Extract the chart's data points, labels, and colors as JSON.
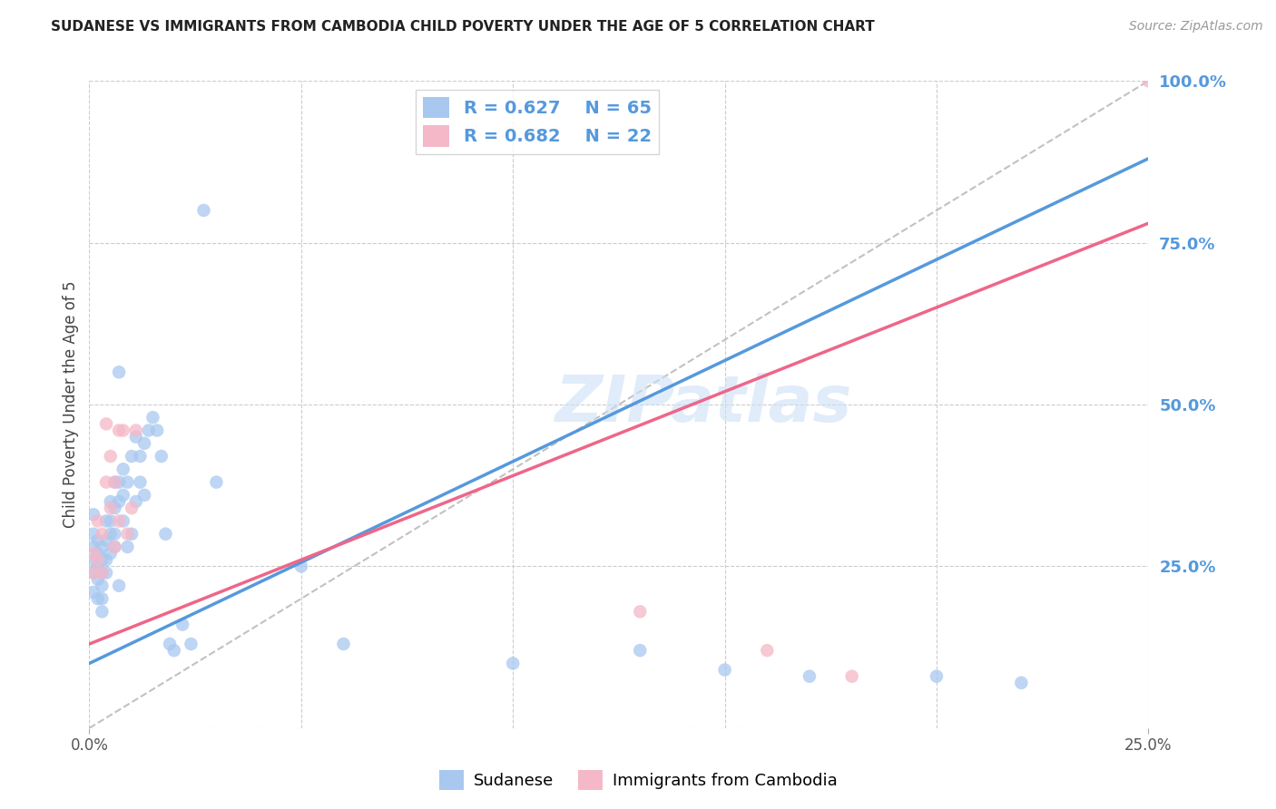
{
  "title": "SUDANESE VS IMMIGRANTS FROM CAMBODIA CHILD POVERTY UNDER THE AGE OF 5 CORRELATION CHART",
  "source_text": "Source: ZipAtlas.com",
  "ylabel": "Child Poverty Under the Age of 5",
  "xlim": [
    0,
    0.25
  ],
  "ylim": [
    0,
    1.0
  ],
  "yticks": [
    0,
    0.25,
    0.5,
    0.75,
    1.0
  ],
  "ytick_labels": [
    "",
    "25.0%",
    "50.0%",
    "75.0%",
    "100.0%"
  ],
  "xticks": [
    0,
    0.25
  ],
  "xtick_labels": [
    "0.0%",
    "25.0%"
  ],
  "blue_scatter_color": "#a8c8f0",
  "pink_scatter_color": "#f5b8c8",
  "blue_line_color": "#5599dd",
  "pink_line_color": "#ee6688",
  "ref_line_color": "#bbbbbb",
  "right_axis_color": "#5599dd",
  "grid_color": "#cccccc",
  "watermark": "ZIPatlas",
  "legend_r_blue": "R = 0.627",
  "legend_n_blue": "N = 65",
  "legend_r_pink": "R = 0.682",
  "legend_n_pink": "N = 22",
  "blue_trend_x0": 0.0,
  "blue_trend_y0": 0.1,
  "blue_trend_x1": 0.25,
  "blue_trend_y1": 0.88,
  "pink_trend_x0": 0.0,
  "pink_trend_y0": 0.13,
  "pink_trend_x1": 0.25,
  "pink_trend_y1": 0.78,
  "sudanese_x": [
    0.001,
    0.001,
    0.001,
    0.001,
    0.001,
    0.001,
    0.002,
    0.002,
    0.002,
    0.002,
    0.002,
    0.003,
    0.003,
    0.003,
    0.003,
    0.003,
    0.003,
    0.004,
    0.004,
    0.004,
    0.004,
    0.005,
    0.005,
    0.005,
    0.005,
    0.006,
    0.006,
    0.006,
    0.006,
    0.007,
    0.007,
    0.007,
    0.008,
    0.008,
    0.008,
    0.009,
    0.009,
    0.01,
    0.01,
    0.011,
    0.011,
    0.012,
    0.012,
    0.013,
    0.013,
    0.014,
    0.015,
    0.016,
    0.017,
    0.018,
    0.019,
    0.02,
    0.022,
    0.024,
    0.027,
    0.03,
    0.05,
    0.06,
    0.1,
    0.13,
    0.15,
    0.17,
    0.2,
    0.22,
    0.007
  ],
  "sudanese_y": [
    0.33,
    0.3,
    0.28,
    0.26,
    0.24,
    0.21,
    0.29,
    0.27,
    0.25,
    0.23,
    0.2,
    0.28,
    0.26,
    0.24,
    0.22,
    0.2,
    0.18,
    0.32,
    0.29,
    0.26,
    0.24,
    0.35,
    0.32,
    0.3,
    0.27,
    0.38,
    0.34,
    0.3,
    0.28,
    0.38,
    0.35,
    0.22,
    0.4,
    0.36,
    0.32,
    0.38,
    0.28,
    0.42,
    0.3,
    0.45,
    0.35,
    0.42,
    0.38,
    0.44,
    0.36,
    0.46,
    0.48,
    0.46,
    0.42,
    0.3,
    0.13,
    0.12,
    0.16,
    0.13,
    0.8,
    0.38,
    0.25,
    0.13,
    0.1,
    0.12,
    0.09,
    0.08,
    0.08,
    0.07,
    0.55
  ],
  "cambodia_x": [
    0.001,
    0.001,
    0.002,
    0.002,
    0.003,
    0.003,
    0.004,
    0.004,
    0.005,
    0.005,
    0.006,
    0.006,
    0.007,
    0.007,
    0.008,
    0.009,
    0.01,
    0.011,
    0.13,
    0.16,
    0.18,
    0.25
  ],
  "cambodia_y": [
    0.27,
    0.24,
    0.32,
    0.26,
    0.3,
    0.24,
    0.47,
    0.38,
    0.42,
    0.34,
    0.38,
    0.28,
    0.46,
    0.32,
    0.46,
    0.3,
    0.34,
    0.46,
    0.18,
    0.12,
    0.08,
    1.0
  ],
  "background_color": "#ffffff"
}
